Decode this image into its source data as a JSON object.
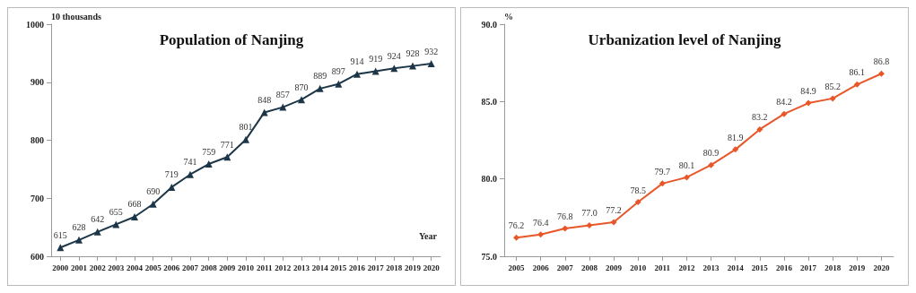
{
  "chart_data": [
    {
      "type": "line",
      "title": "Population of Nanjing",
      "ylabel": "10 thousands",
      "xlabel": "Year",
      "categories": [
        "2000",
        "2001",
        "2002",
        "2003",
        "2004",
        "2005",
        "2006",
        "2007",
        "2008",
        "2009",
        "2010",
        "2011",
        "2012",
        "2013",
        "2014",
        "2015",
        "2016",
        "2017",
        "2018",
        "2019",
        "2020"
      ],
      "series": [
        {
          "color": "#1c3648",
          "values": [
            615,
            628,
            642,
            655,
            668,
            690,
            719,
            741,
            759,
            771,
            801,
            848,
            857,
            870,
            889,
            897,
            914,
            919,
            924,
            928,
            932
          ]
        }
      ],
      "ylim": [
        600,
        1000
      ],
      "yticks": [
        600,
        700,
        800,
        900,
        1000
      ],
      "marker": "triangle",
      "data_labels": true
    },
    {
      "type": "line",
      "title": "Urbanization level of Nanjing",
      "ylabel": "%",
      "categories": [
        "2005",
        "2006",
        "2007",
        "2008",
        "2009",
        "2010",
        "2011",
        "2012",
        "2013",
        "2014",
        "2015",
        "2016",
        "2017",
        "2018",
        "2019",
        "2020"
      ],
      "series": [
        {
          "color": "#e8572a",
          "values": [
            76.2,
            76.4,
            76.8,
            77.0,
            77.2,
            78.5,
            79.7,
            80.1,
            80.9,
            81.9,
            83.2,
            84.2,
            84.9,
            85.2,
            86.1,
            86.8
          ],
          "value_labels": [
            "76.2",
            "76.4",
            "76.8",
            "77.0",
            "77.2",
            "78.5",
            "79.7",
            "80.1",
            "80.9",
            "81.9",
            "83.2",
            "84.2",
            "84.9",
            "85.2",
            "86.1",
            "86.8"
          ]
        }
      ],
      "ylim": [
        75,
        90
      ],
      "yticks": [
        {
          "value": 75,
          "label": "75.0"
        },
        {
          "value": 80,
          "label": "80.0"
        },
        {
          "value": 85,
          "label": "85.0"
        },
        {
          "value": 90,
          "label": "90.0"
        }
      ],
      "marker": "diamond"
    }
  ]
}
